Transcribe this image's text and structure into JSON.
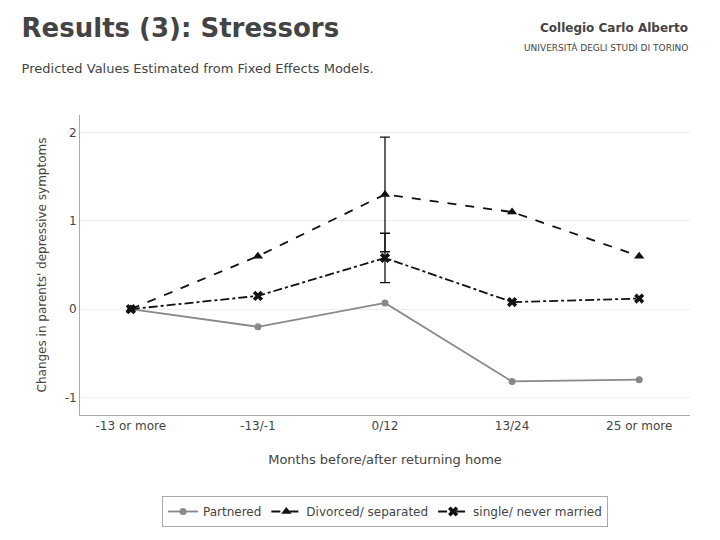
{
  "chart_data": {
    "type": "line",
    "title": "Results (3): Stressors",
    "subtitle": "Predicted Values Estimated from Fixed Effects Models.",
    "annotations": [
      "Collegio Carlo Alberto",
      "UNIVERSITÀ DEGLI STUDI DI TORINO"
    ],
    "xlabel": "Months before/after returning home",
    "ylabel": "Changes in parents' depressive symptoms",
    "categories": [
      "-13 or more",
      "-13/-1",
      "0/12",
      "13/24",
      "25 or more"
    ],
    "series": [
      {
        "name": "Partnered",
        "color": "#888888",
        "marker": "circle",
        "line_style": "solid",
        "values": [
          0.0,
          -0.2,
          0.07,
          -0.82,
          -0.8
        ]
      },
      {
        "name": "Divorced/ separated",
        "color": "#111111",
        "marker": "triangle",
        "line_style": "dashed",
        "values": [
          0.0,
          0.6,
          1.3,
          1.1,
          0.6
        ],
        "error_low": [
          null,
          null,
          0.65,
          null,
          null
        ],
        "error_high": [
          null,
          null,
          0.65,
          null,
          null
        ]
      },
      {
        "name": "single/ never married",
        "color": "#111111",
        "marker": "x",
        "line_style": "dashdot",
        "values": [
          0.0,
          0.15,
          0.58,
          0.08,
          0.12
        ],
        "error_low": [
          null,
          null,
          0.28,
          null,
          null
        ],
        "error_high": [
          null,
          null,
          0.28,
          null,
          null
        ]
      }
    ],
    "ylim": [
      -1.2,
      2.2
    ],
    "yticks": [
      -1,
      0,
      1,
      2
    ],
    "grid": true,
    "legend": "bottom"
  }
}
